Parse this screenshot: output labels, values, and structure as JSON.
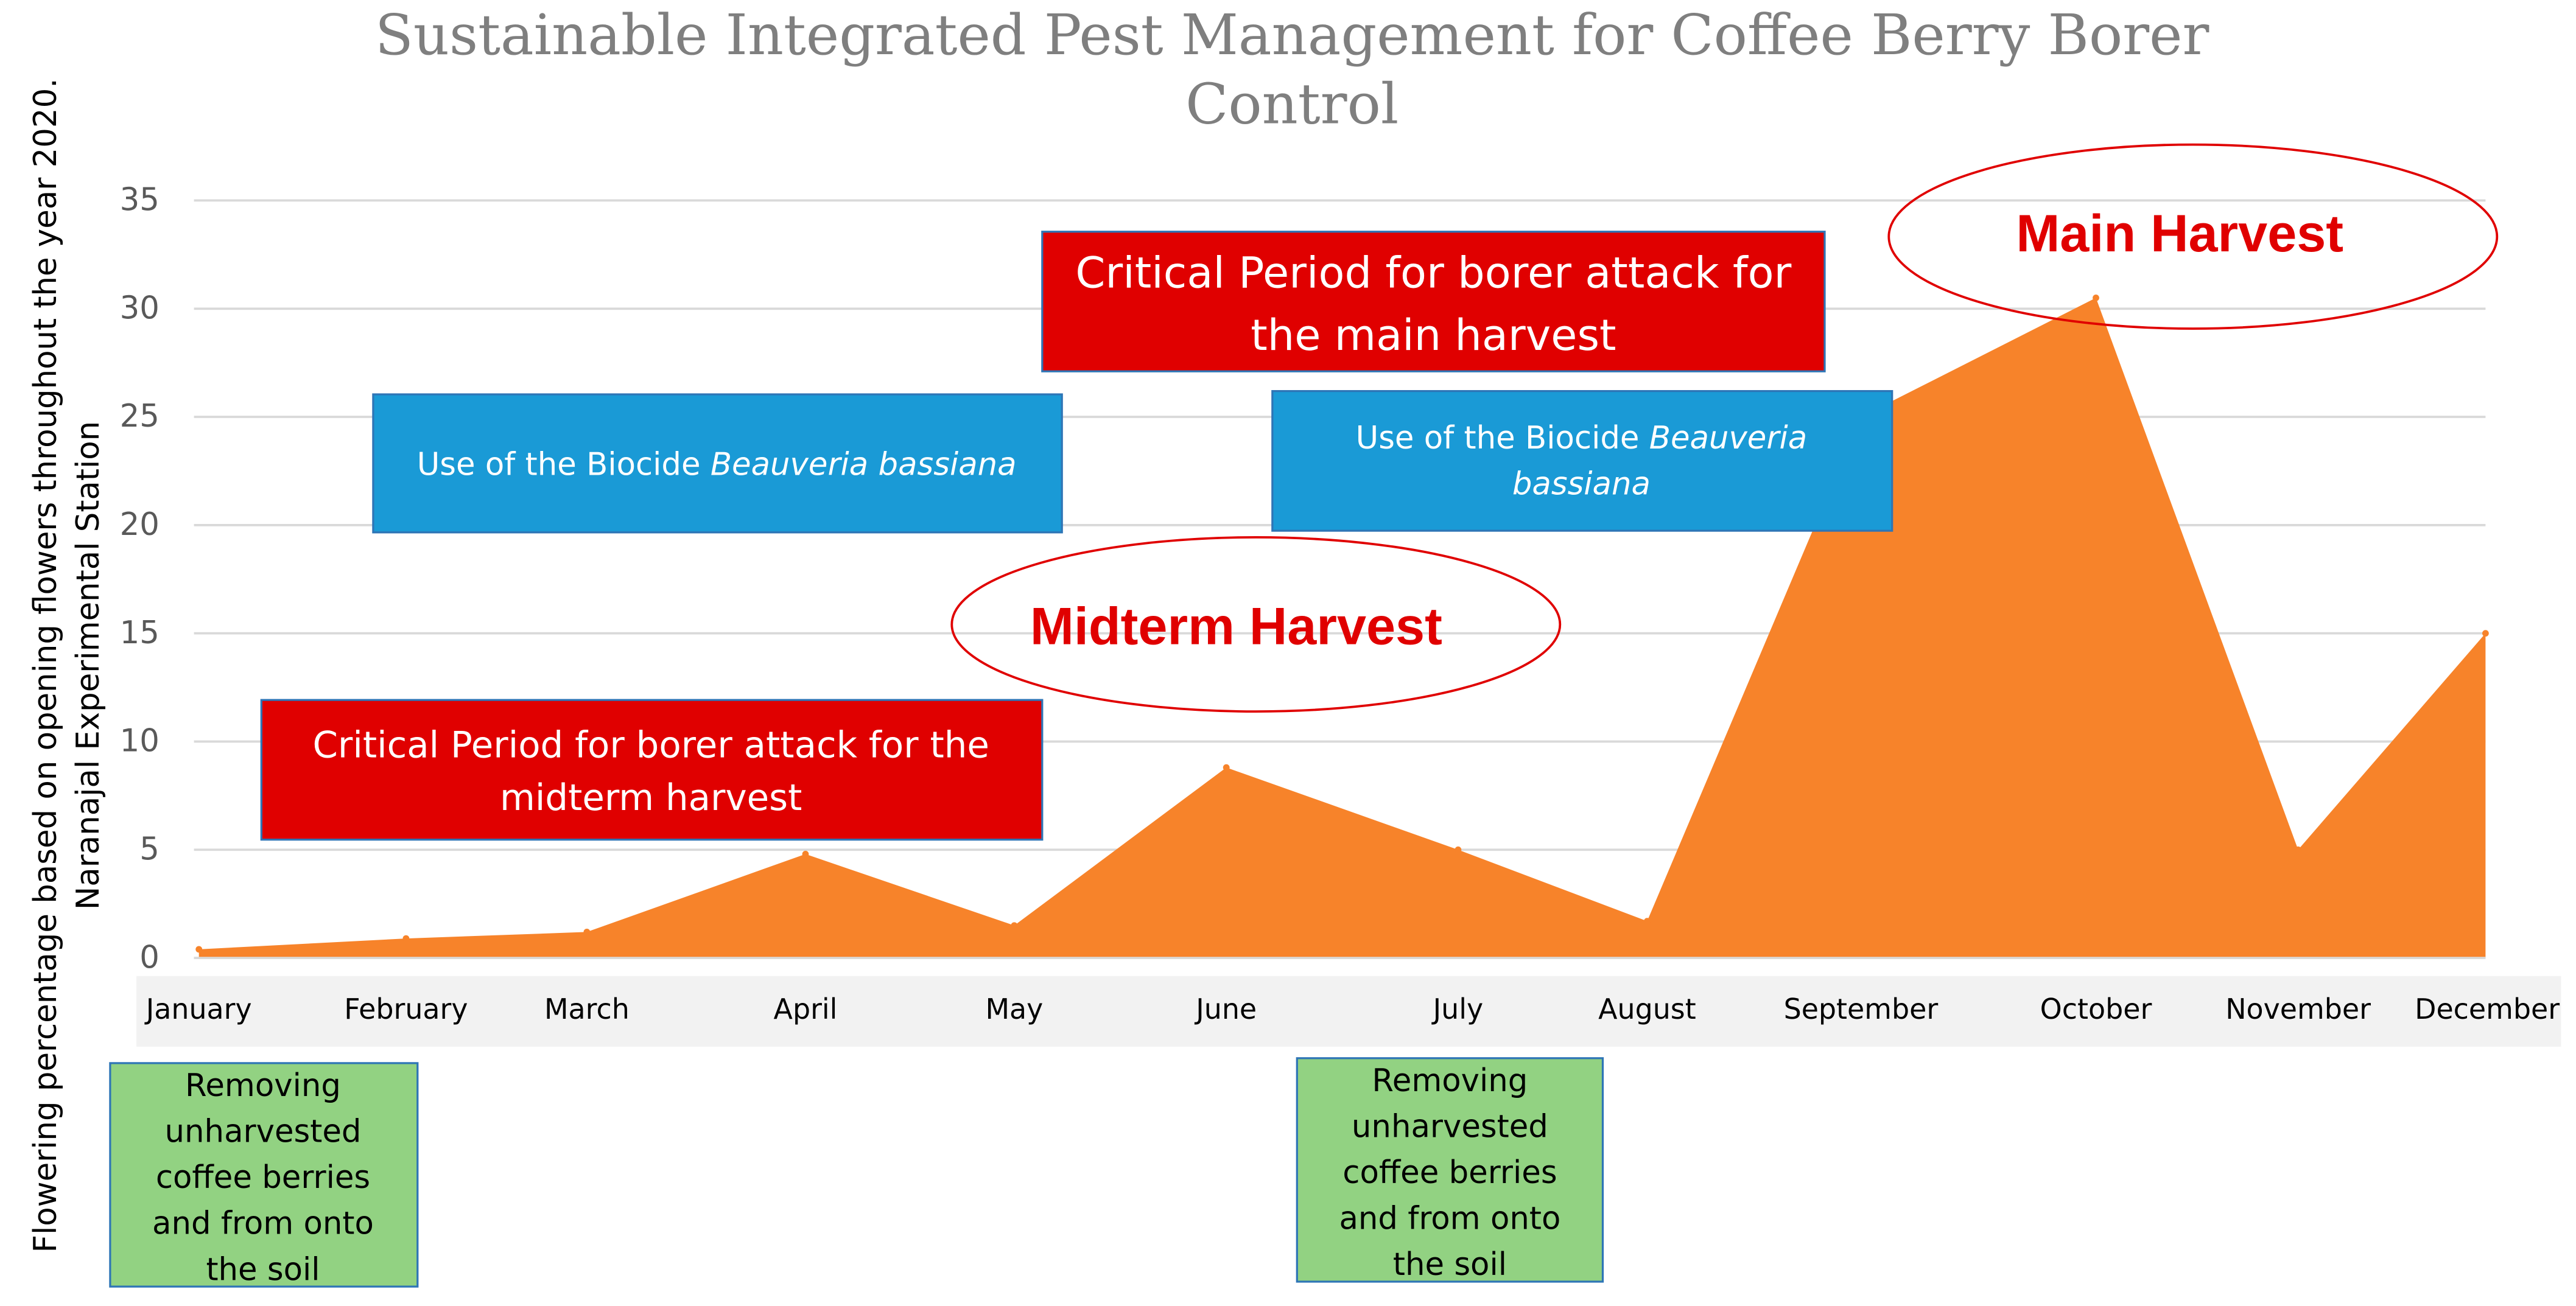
{
  "chart_data": {
    "type": "area",
    "title_lines": [
      "Sustainable Integrated Pest Management for Coffee Berry Borer",
      "Control"
    ],
    "ylabel_lines": [
      "Flowering percentage based on opening flowers throughout the year 2020.",
      "Naranajal Experimental Station"
    ],
    "xlabel": "",
    "categories": [
      "January",
      "February",
      "March",
      "April",
      "May",
      "June",
      "July",
      "August",
      "September",
      "October",
      "November",
      "December"
    ],
    "values": [
      0.4,
      0.9,
      1.2,
      4.8,
      1.5,
      8.8,
      5.0,
      1.7,
      25.0,
      30.5,
      5.0,
      15.0
    ],
    "yticks": [
      0,
      5,
      10,
      15,
      20,
      25,
      30,
      35
    ],
    "ylim": [
      0,
      35
    ],
    "grid": true,
    "legend": "none",
    "colors": {
      "area": "#f7832a",
      "grid": "#d9d9d9",
      "axis_band": "#f2f2f2",
      "critical_box": "#e00000",
      "biocide_box": "#1a9ad6",
      "removal_box": "#92d282",
      "harvest_red": "#e00000"
    },
    "annotations": {
      "critical_midterm": [
        "Critical Period for borer attack for the",
        "midterm harvest"
      ],
      "critical_main": [
        "Critical Period for borer attack for",
        "the main harvest"
      ],
      "biocide_left": {
        "prefix": "Use of the Biocide ",
        "italic": "Beauveria bassiana"
      },
      "biocide_right": {
        "line1_prefix": "Use of the Biocide ",
        "line1_italic": "Beauveria",
        "line2_italic": "bassiana"
      },
      "midterm_harvest": "Midterm Harvest",
      "main_harvest": "Main Harvest",
      "removal_left": [
        "Removing",
        "unharvested",
        "coffee berries",
        "and from onto",
        "the soil"
      ],
      "removal_right": [
        "Removing",
        "unharvested",
        "coffee berries",
        "and from onto",
        "the soil"
      ]
    }
  }
}
